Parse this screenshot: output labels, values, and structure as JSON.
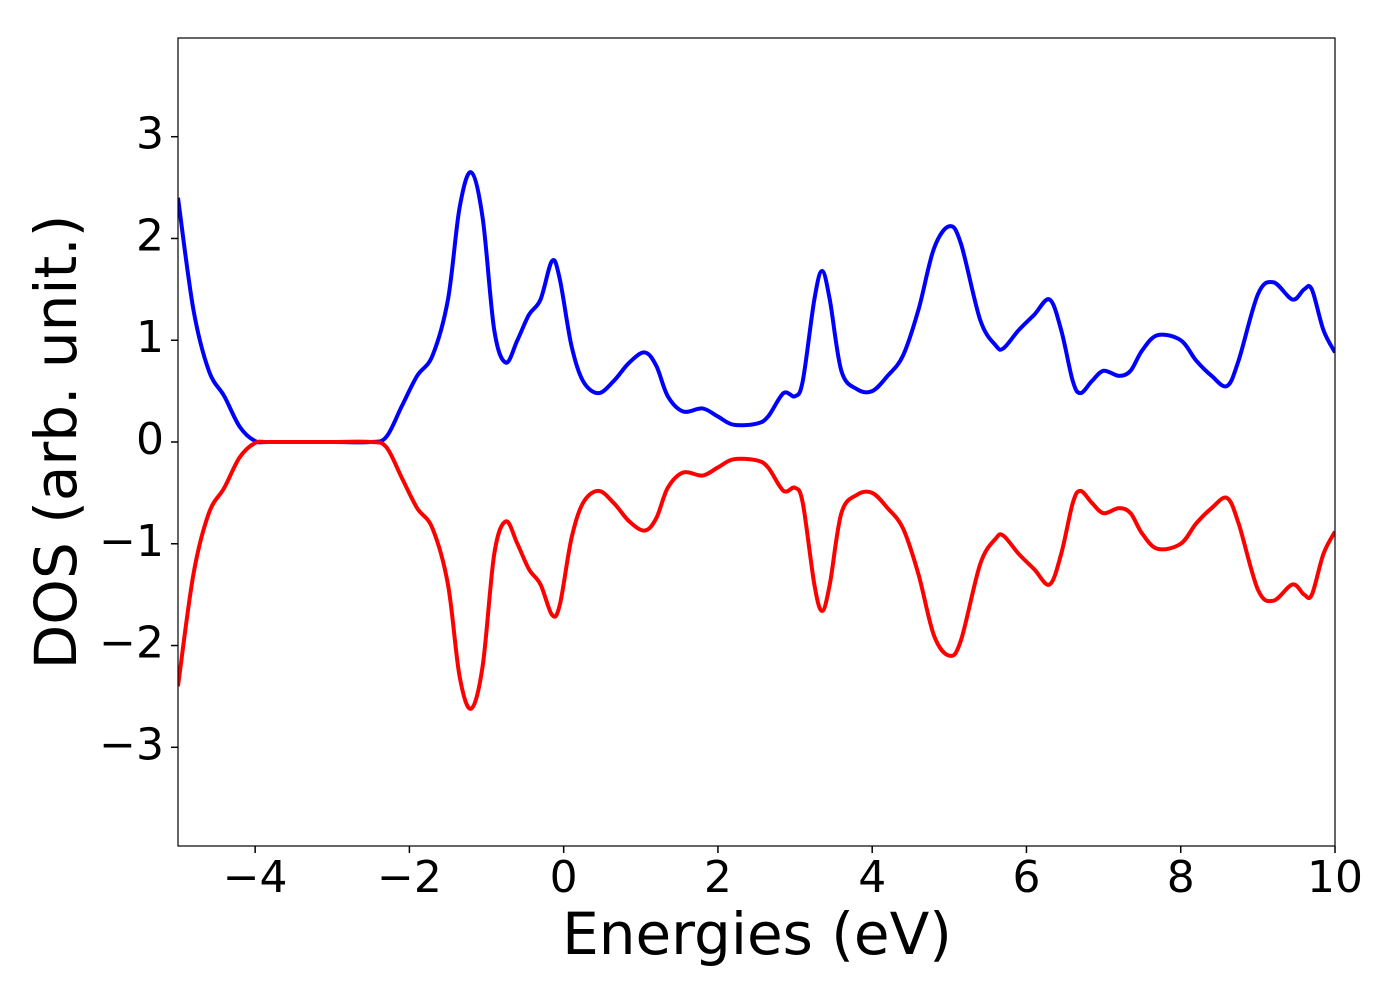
{
  "chart_data": {
    "type": "line",
    "xlabel": "Energies (eV)",
    "ylabel": "DOS (arb. unit.)",
    "x": [
      -5,
      -4.8,
      -4.6,
      -4.4,
      -4.2,
      -4.0,
      -3.8,
      -3.0,
      -2.5,
      -2.3,
      -2.1,
      -1.9,
      -1.7,
      -1.5,
      -1.35,
      -1.2,
      -1.05,
      -0.9,
      -0.75,
      -0.6,
      -0.45,
      -0.3,
      -0.15,
      -0.05,
      0.1,
      0.25,
      0.45,
      0.65,
      0.85,
      1.05,
      1.2,
      1.35,
      1.55,
      1.8,
      2.0,
      2.2,
      2.5,
      2.65,
      2.85,
      3.0,
      3.1,
      3.25,
      3.35,
      3.45,
      3.6,
      3.8,
      4.0,
      4.2,
      4.4,
      4.6,
      4.8,
      5.0,
      5.15,
      5.4,
      5.6,
      5.7,
      5.9,
      6.1,
      6.3,
      6.45,
      6.6,
      6.7,
      6.85,
      7.0,
      7.2,
      7.35,
      7.5,
      7.7,
      8.0,
      8.2,
      8.4,
      8.6,
      8.75,
      9.0,
      9.2,
      9.45,
      9.6,
      9.7,
      9.85,
      10.0
    ],
    "series": [
      {
        "color": "#0000ff",
        "values": [
          2.4,
          1.3,
          0.7,
          0.45,
          0.15,
          0.01,
          0,
          0,
          0,
          0.05,
          0.35,
          0.65,
          0.85,
          1.4,
          2.3,
          2.65,
          2.2,
          1.1,
          0.78,
          1.0,
          1.25,
          1.4,
          1.78,
          1.6,
          0.95,
          0.6,
          0.48,
          0.6,
          0.78,
          0.88,
          0.75,
          0.45,
          0.3,
          0.33,
          0.25,
          0.17,
          0.18,
          0.25,
          0.48,
          0.45,
          0.6,
          1.4,
          1.68,
          1.4,
          0.7,
          0.52,
          0.5,
          0.65,
          0.85,
          1.3,
          1.9,
          2.12,
          1.95,
          1.2,
          0.95,
          0.92,
          1.1,
          1.25,
          1.4,
          1.1,
          0.6,
          0.48,
          0.6,
          0.7,
          0.65,
          0.7,
          0.9,
          1.05,
          1.0,
          0.8,
          0.65,
          0.55,
          0.8,
          1.45,
          1.57,
          1.4,
          1.5,
          1.5,
          1.1,
          0.88
        ]
      },
      {
        "color": "#ff0000",
        "values": [
          -2.4,
          -1.3,
          -0.7,
          -0.45,
          -0.15,
          -0.01,
          0,
          0,
          0,
          -0.05,
          -0.35,
          -0.65,
          -0.85,
          -1.4,
          -2.3,
          -2.62,
          -2.2,
          -1.1,
          -0.78,
          -1.0,
          -1.25,
          -1.4,
          -1.7,
          -1.6,
          -0.95,
          -0.6,
          -0.48,
          -0.6,
          -0.78,
          -0.87,
          -0.75,
          -0.45,
          -0.3,
          -0.33,
          -0.25,
          -0.17,
          -0.18,
          -0.25,
          -0.48,
          -0.45,
          -0.6,
          -1.4,
          -1.66,
          -1.4,
          -0.7,
          -0.52,
          -0.5,
          -0.65,
          -0.85,
          -1.3,
          -1.9,
          -2.1,
          -1.95,
          -1.2,
          -0.95,
          -0.92,
          -1.1,
          -1.25,
          -1.4,
          -1.1,
          -0.6,
          -0.48,
          -0.6,
          -0.7,
          -0.65,
          -0.7,
          -0.9,
          -1.05,
          -1.0,
          -0.8,
          -0.65,
          -0.55,
          -0.8,
          -1.45,
          -1.56,
          -1.4,
          -1.5,
          -1.5,
          -1.1,
          -0.88
        ]
      }
    ],
    "xlim": [
      -5,
      10
    ],
    "xticks": [
      {
        "value": -4,
        "label": "−4"
      },
      {
        "value": -2,
        "label": "−2"
      },
      0,
      2,
      4,
      6,
      8,
      10
    ],
    "ylim": [
      -3.97,
      3.97
    ],
    "yticks": [
      {
        "value": -3,
        "label": "−3"
      },
      {
        "value": -2,
        "label": "−2"
      },
      {
        "value": -1,
        "label": "−1"
      },
      0,
      1,
      2,
      3
    ],
    "grid": false
  }
}
